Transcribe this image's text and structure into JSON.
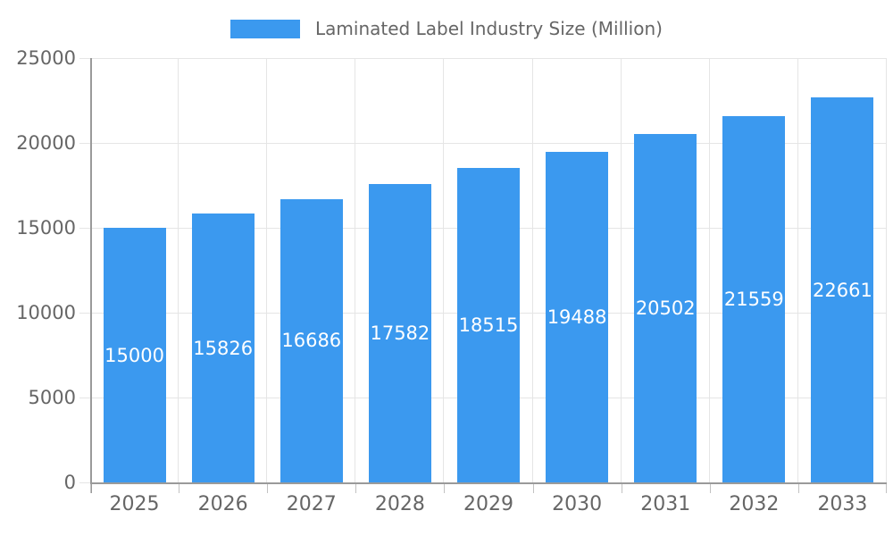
{
  "legend": {
    "label": "Laminated Label Industry Size (Million)"
  },
  "chart_data": {
    "type": "bar",
    "title": "Laminated Label Industry Size (Million)",
    "categories": [
      "2025",
      "2026",
      "2027",
      "2028",
      "2029",
      "2030",
      "2031",
      "2032",
      "2033"
    ],
    "values": [
      15000,
      15826,
      16686,
      17582,
      18515,
      19488,
      20502,
      21559,
      22661
    ],
    "xlabel": "",
    "ylabel": "",
    "ylim": [
      0,
      25000
    ],
    "yticks": [
      0,
      5000,
      10000,
      15000,
      20000,
      25000
    ],
    "grid": true,
    "legend_position": "top-center",
    "bar_label_position": "inside-center",
    "colors": {
      "bar": "#3B99EF",
      "bar_label": "#FFFFFF",
      "axis": "#9A9A9A",
      "grid": "#E5E5E5",
      "x_tick": "#C2C2C2",
      "tick_text": "#666666",
      "background": "#FFFFFF"
    }
  }
}
